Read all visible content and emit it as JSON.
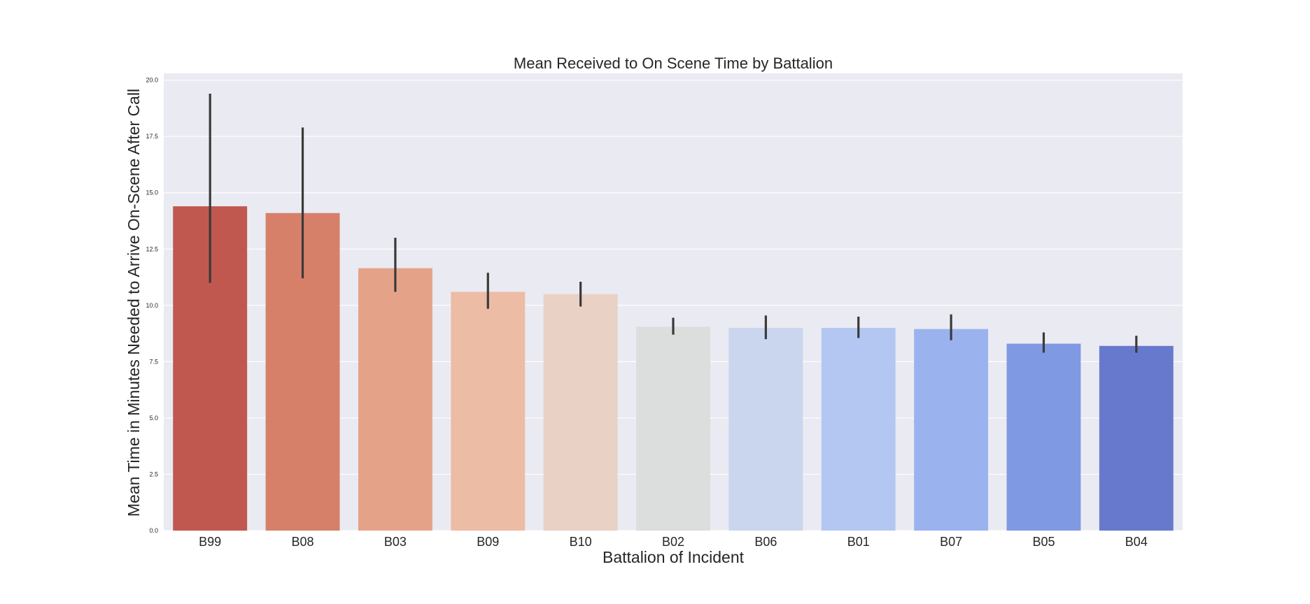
{
  "chart_data": {
    "type": "bar",
    "title": "Mean Received to On Scene Time by Battalion",
    "xlabel": "Battalion of Incident",
    "ylabel": "Mean Time in Minutes Needed to Arrive On-Scene After Call",
    "ylim": [
      0,
      20.3
    ],
    "yticks": [
      "0.0",
      "2.5",
      "5.0",
      "7.5",
      "10.0",
      "12.5",
      "15.0",
      "17.5",
      "20.0"
    ],
    "grid": true,
    "background": "#eaeaf2",
    "categories": [
      "B99",
      "B08",
      "B03",
      "B09",
      "B10",
      "B02",
      "B06",
      "B01",
      "B07",
      "B05",
      "B04"
    ],
    "values": [
      14.4,
      14.1,
      11.65,
      10.6,
      10.5,
      9.05,
      9.0,
      9.0,
      8.95,
      8.3,
      8.2
    ],
    "error_low": [
      11.0,
      11.2,
      10.6,
      9.85,
      9.95,
      8.7,
      8.5,
      8.55,
      8.45,
      7.9,
      7.9
    ],
    "error_high": [
      19.4,
      17.9,
      13.0,
      11.45,
      11.05,
      9.45,
      9.55,
      9.5,
      9.6,
      8.8,
      8.65
    ],
    "colors": [
      "#c0584f",
      "#d6806a",
      "#e4a389",
      "#ecbca5",
      "#e9d1c5",
      "#dcdddd",
      "#cad6ee",
      "#b4c7f2",
      "#9ab3ee",
      "#7f99e2",
      "#6779cc"
    ]
  }
}
